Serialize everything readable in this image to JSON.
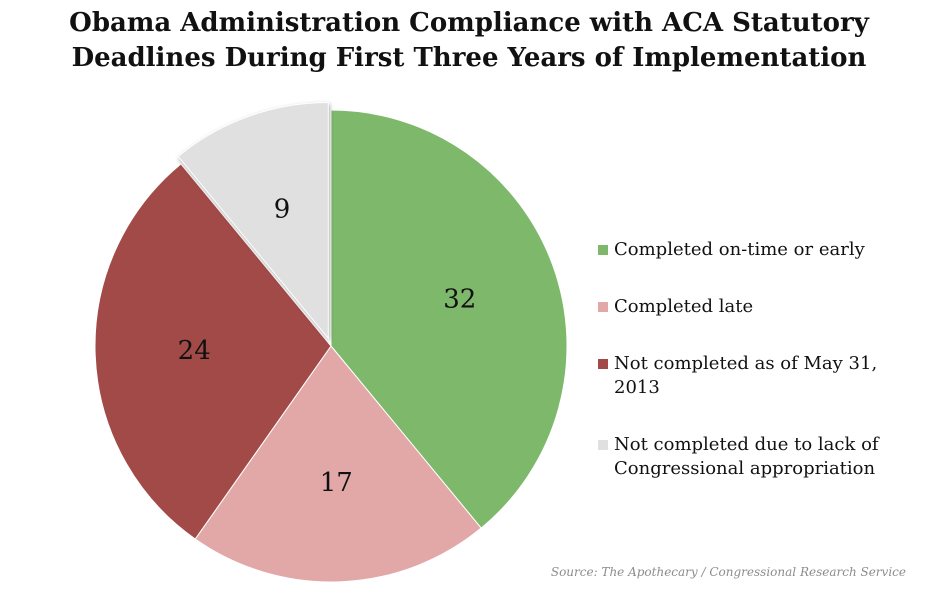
{
  "chart_data": {
    "type": "pie",
    "title_lines": [
      "Obama Administration Compliance with ACA Statutory",
      "Deadlines During First Three Years of Implementation"
    ],
    "slices": [
      {
        "label": "Completed on-time or early",
        "value": 32,
        "color": "#7db86b"
      },
      {
        "label": "Completed late",
        "value": 17,
        "color": "#e2a8a8"
      },
      {
        "label": "Not completed as of May 31, 2013",
        "value": 24,
        "color": "#a24a48"
      },
      {
        "label": "Not completed due to lack of Congressional appropriation",
        "value": 9,
        "color": "#e0e0e0",
        "exploded": true
      }
    ],
    "legend_position": "right",
    "source": "Source: The Apothecary / Congressional Research Service"
  },
  "legend": {
    "items": [
      {
        "lines": [
          "Completed on-time or early"
        ]
      },
      {
        "lines": [
          "Completed late"
        ]
      },
      {
        "lines": [
          "Not completed as of May 31, 2013"
        ]
      },
      {
        "lines": [
          "Not completed due to lack of",
          "Congressional appropriation"
        ]
      }
    ]
  }
}
